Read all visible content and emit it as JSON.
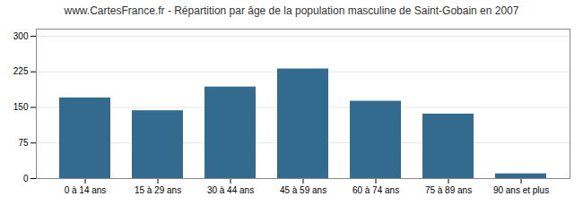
{
  "chart_data": {
    "type": "bar",
    "title": "www.CartesFrance.fr - Répartition par âge de la population masculine de Saint-Gobain en 2007",
    "categories": [
      "0 à 14 ans",
      "15 à 29 ans",
      "30 à 44 ans",
      "45 à 59 ans",
      "60 à 74 ans",
      "75 à 89 ans",
      "90 ans et plus"
    ],
    "values": [
      170,
      143,
      193,
      231,
      163,
      136,
      10
    ],
    "color": "#336b8e",
    "ylim": [
      0,
      315
    ],
    "yticks": [
      0,
      75,
      150,
      225,
      300
    ],
    "grid": true
  }
}
